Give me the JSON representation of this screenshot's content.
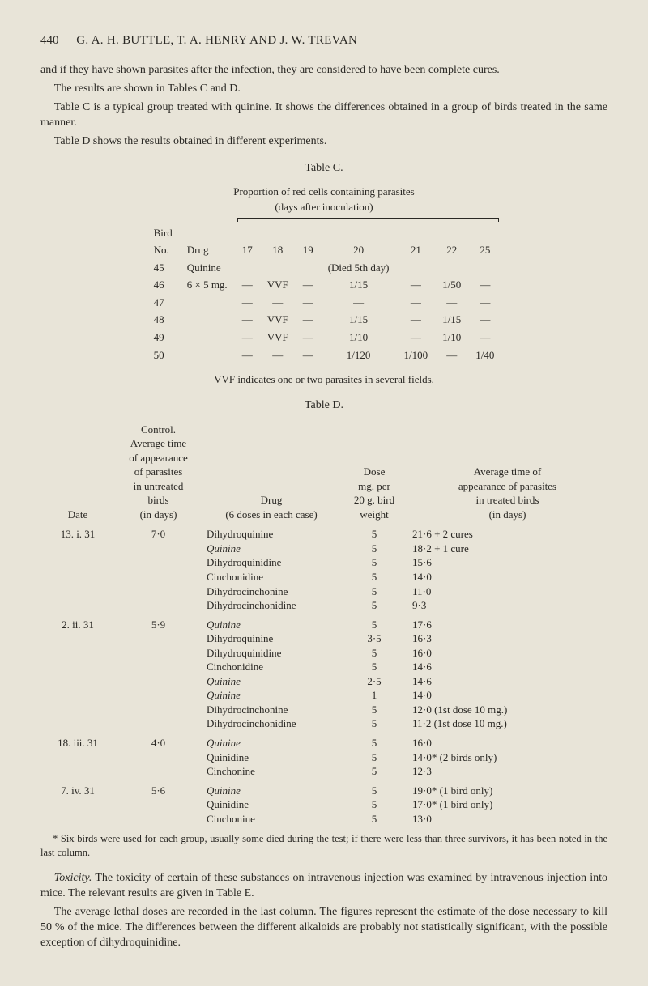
{
  "header": {
    "page_number": "440",
    "authors": "G. A. H. BUTTLE, T. A. HENRY AND J. W. TREVAN"
  },
  "para1": "and if they have shown parasites after the infection, they are considered to have been complete cures.",
  "para2": "The results are shown in Tables C and D.",
  "para3": "Table C is a typical group treated with quinine. It shows the differences obtained in a group of birds treated in the same manner.",
  "para4": "Table D shows the results obtained in different experiments.",
  "tableC": {
    "title": "Table C.",
    "subtitle1": "Proportion of red cells containing parasites",
    "subtitle2": "(days after inoculation)",
    "col_labels": {
      "bird": "Bird",
      "no": "No.",
      "drug": "Drug"
    },
    "days": [
      "17",
      "18",
      "19",
      "20",
      "21",
      "22",
      "25"
    ],
    "rows": [
      {
        "no": "45",
        "drug": "Quinine",
        "c17": "",
        "c18": "",
        "c19": "",
        "c20": "(Died 5th day)",
        "c21": "",
        "c22": "",
        "c25": ""
      },
      {
        "no": "46",
        "drug": "6 × 5 mg.",
        "c17": "—",
        "c18": "VVF",
        "c19": "—",
        "c20": "1/15",
        "c21": "—",
        "c22": "1/50",
        "c25": "—"
      },
      {
        "no": "47",
        "drug": "",
        "c17": "—",
        "c18": "—",
        "c19": "—",
        "c20": "—",
        "c21": "—",
        "c22": "—",
        "c25": "—"
      },
      {
        "no": "48",
        "drug": "",
        "c17": "—",
        "c18": "VVF",
        "c19": "—",
        "c20": "1/15",
        "c21": "—",
        "c22": "1/15",
        "c25": "—"
      },
      {
        "no": "49",
        "drug": "",
        "c17": "—",
        "c18": "VVF",
        "c19": "—",
        "c20": "1/10",
        "c21": "—",
        "c22": "1/10",
        "c25": "—"
      },
      {
        "no": "50",
        "drug": "",
        "c17": "—",
        "c18": "—",
        "c19": "—",
        "c20": "1/120",
        "c21": "1/100",
        "c22": "—",
        "c25": "1/40"
      }
    ],
    "footnote": "VVF indicates one or two parasites in several fields."
  },
  "tableD": {
    "title": "Table D.",
    "headers": {
      "date": "Date",
      "control": "Control.\nAverage time\nof appearance\nof parasites\nin untreated\nbirds\n(in days)",
      "drug": "Drug\n(6 doses in each case)",
      "dose": "Dose\nmg. per\n20 g. bird\nweight",
      "avg": "Average time of\nappearance of parasites\nin treated birds\n(in days)"
    },
    "groups": [
      {
        "date": "13. i. 31",
        "control": "7·0",
        "rows": [
          {
            "drug": "Dihydroquinine",
            "ital": false,
            "dose": "5",
            "avg": "21·6 + 2 cures"
          },
          {
            "drug": "Quinine",
            "ital": true,
            "dose": "5",
            "avg": "18·2 + 1 cure"
          },
          {
            "drug": "Dihydroquinidine",
            "ital": false,
            "dose": "5",
            "avg": "15·6"
          },
          {
            "drug": "Cinchonidine",
            "ital": false,
            "dose": "5",
            "avg": "14·0"
          },
          {
            "drug": "Dihydrocinchonine",
            "ital": false,
            "dose": "5",
            "avg": "11·0"
          },
          {
            "drug": "Dihydrocinchonidine",
            "ital": false,
            "dose": "5",
            "avg": "9·3"
          }
        ]
      },
      {
        "date": "2. ii. 31",
        "control": "5·9",
        "rows": [
          {
            "drug": "Quinine",
            "ital": true,
            "dose": "5",
            "avg": "17·6"
          },
          {
            "drug": "Dihydroquinine",
            "ital": false,
            "dose": "3·5",
            "avg": "16·3"
          },
          {
            "drug": "Dihydroquinidine",
            "ital": false,
            "dose": "5",
            "avg": "16·0"
          },
          {
            "drug": "Cinchonidine",
            "ital": false,
            "dose": "5",
            "avg": "14·6"
          },
          {
            "drug": "Quinine",
            "ital": true,
            "dose": "2·5",
            "avg": "14·6"
          },
          {
            "drug": "Quinine",
            "ital": true,
            "dose": "1",
            "avg": "14·0"
          },
          {
            "drug": "Dihydrocinchonine",
            "ital": false,
            "dose": "5",
            "avg": "12·0 (1st dose 10 mg.)"
          },
          {
            "drug": "Dihydrocinchonidine",
            "ital": false,
            "dose": "5",
            "avg": "11·2 (1st dose 10 mg.)"
          }
        ]
      },
      {
        "date": "18. iii. 31",
        "control": "4·0",
        "rows": [
          {
            "drug": "Quinine",
            "ital": true,
            "dose": "5",
            "avg": "16·0"
          },
          {
            "drug": "Quinidine",
            "ital": false,
            "dose": "5",
            "avg": "14·0* (2 birds only)"
          },
          {
            "drug": "Cinchonine",
            "ital": false,
            "dose": "5",
            "avg": "12·3"
          }
        ]
      },
      {
        "date": "7. iv. 31",
        "control": "5·6",
        "rows": [
          {
            "drug": "Quinine",
            "ital": true,
            "dose": "5",
            "avg": "19·0* (1 bird only)"
          },
          {
            "drug": "Quinidine",
            "ital": false,
            "dose": "5",
            "avg": "17·0* (1 bird only)"
          },
          {
            "drug": "Cinchonine",
            "ital": false,
            "dose": "5",
            "avg": "13·0"
          }
        ]
      }
    ],
    "starnote": "* Six birds were used for each group, usually some died during the test; if there were less than three survivors, it has been noted in the last column."
  },
  "para5a": "Toxicity.",
  "para5b": " The toxicity of certain of these substances on intravenous injection was examined by intravenous injection into mice. The relevant results are given in Table E.",
  "para6": "The average lethal doses are recorded in the last column. The figures re­present the estimate of the dose necessary to kill 50 % of the mice. The differ­ences between the different alkaloids are probably not statistically significant, with the possible exception of dihydroquinidine."
}
